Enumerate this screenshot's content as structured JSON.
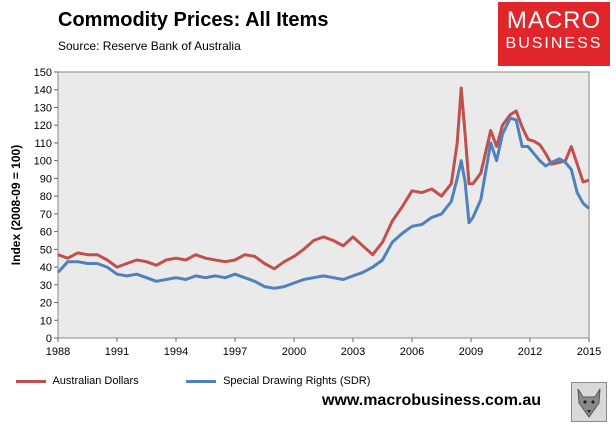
{
  "header": {
    "title": "Commodity Prices: All Items",
    "source": "Source: Reserve Bank of Australia"
  },
  "logo": {
    "line1": "MACRO",
    "line2": "BUSINESS"
  },
  "footer": {
    "url": "www.macrobusiness.com.au"
  },
  "chart_data": {
    "type": "line",
    "title": "Commodity Prices: All Items",
    "ylabel": "Index (2008-09 = 100)",
    "xlabel": "",
    "xlim": [
      1988,
      2015
    ],
    "ylim": [
      0,
      150
    ],
    "yticks": [
      0,
      10,
      20,
      30,
      40,
      50,
      60,
      70,
      80,
      90,
      100,
      110,
      120,
      130,
      140,
      150
    ],
    "xticks": [
      1988,
      1991,
      1994,
      1997,
      2000,
      2003,
      2006,
      2009,
      2012,
      2015
    ],
    "xtick_labels": [
      "1988",
      "1991",
      "1994",
      "1997",
      "2000",
      "2003",
      "2006",
      "2009",
      "2012",
      "2015"
    ],
    "ytick_labels": [
      "0",
      "10",
      "20",
      "30",
      "40",
      "50",
      "60",
      "70",
      "80",
      "90",
      "100",
      "110",
      "120",
      "130",
      "140",
      "150"
    ],
    "grid": false,
    "legend_position": "bottom",
    "colors": {
      "aud": "#c0504d",
      "sdr": "#4f81bd",
      "plot_bg": "#eaeaea"
    },
    "series": [
      {
        "name": "Australian Dollars",
        "x": [
          1988.0,
          1988.5,
          1989.0,
          1989.5,
          1990.0,
          1990.5,
          1991.0,
          1991.5,
          1992.0,
          1992.5,
          1993.0,
          1993.5,
          1994.0,
          1994.5,
          1995.0,
          1995.5,
          1996.0,
          1996.5,
          1997.0,
          1997.5,
          1998.0,
          1998.5,
          1999.0,
          1999.5,
          2000.0,
          2000.5,
          2001.0,
          2001.5,
          2002.0,
          2002.5,
          2003.0,
          2003.5,
          2004.0,
          2004.5,
          2005.0,
          2005.5,
          2006.0,
          2006.5,
          2007.0,
          2007.5,
          2008.0,
          2008.3,
          2008.5,
          2008.7,
          2008.9,
          2009.1,
          2009.5,
          2010.0,
          2010.3,
          2010.6,
          2011.0,
          2011.3,
          2011.6,
          2011.9,
          2012.2,
          2012.5,
          2012.8,
          2013.1,
          2013.5,
          2013.8,
          2014.1,
          2014.4,
          2014.7,
          2015.0
        ],
        "values": [
          47,
          45,
          48,
          47,
          47,
          44,
          40,
          42,
          44,
          43,
          41,
          44,
          45,
          44,
          47,
          45,
          44,
          43,
          44,
          47,
          46,
          42,
          39,
          43,
          46,
          50,
          55,
          57,
          55,
          52,
          57,
          52,
          47,
          54,
          66,
          74,
          83,
          82,
          84,
          80,
          87,
          110,
          141,
          115,
          87,
          87,
          93,
          117,
          108,
          120,
          126,
          128,
          119,
          112,
          111,
          109,
          104,
          98,
          99,
          100,
          108,
          98,
          88,
          89
        ]
      },
      {
        "name": "Special Drawing Rights (SDR)",
        "x": [
          1988.0,
          1988.5,
          1989.0,
          1989.5,
          1990.0,
          1990.5,
          1991.0,
          1991.5,
          1992.0,
          1992.5,
          1993.0,
          1993.5,
          1994.0,
          1994.5,
          1995.0,
          1995.5,
          1996.0,
          1996.5,
          1997.0,
          1997.5,
          1998.0,
          1998.5,
          1999.0,
          1999.5,
          2000.0,
          2000.5,
          2001.0,
          2001.5,
          2002.0,
          2002.5,
          2003.0,
          2003.5,
          2004.0,
          2004.5,
          2005.0,
          2005.5,
          2006.0,
          2006.5,
          2007.0,
          2007.5,
          2008.0,
          2008.3,
          2008.5,
          2008.7,
          2008.9,
          2009.1,
          2009.5,
          2010.0,
          2010.3,
          2010.6,
          2011.0,
          2011.3,
          2011.6,
          2011.9,
          2012.2,
          2012.5,
          2012.8,
          2013.1,
          2013.5,
          2013.8,
          2014.1,
          2014.4,
          2014.7,
          2015.0
        ],
        "values": [
          37,
          43,
          43,
          42,
          42,
          40,
          36,
          35,
          36,
          34,
          32,
          33,
          34,
          33,
          35,
          34,
          35,
          34,
          36,
          34,
          32,
          29,
          28,
          29,
          31,
          33,
          34,
          35,
          34,
          33,
          35,
          37,
          40,
          44,
          54,
          59,
          63,
          64,
          68,
          70,
          77,
          90,
          100,
          88,
          65,
          68,
          78,
          110,
          100,
          115,
          124,
          123,
          108,
          108,
          104,
          100,
          97,
          99,
          101,
          99,
          95,
          82,
          76,
          73
        ]
      }
    ]
  }
}
